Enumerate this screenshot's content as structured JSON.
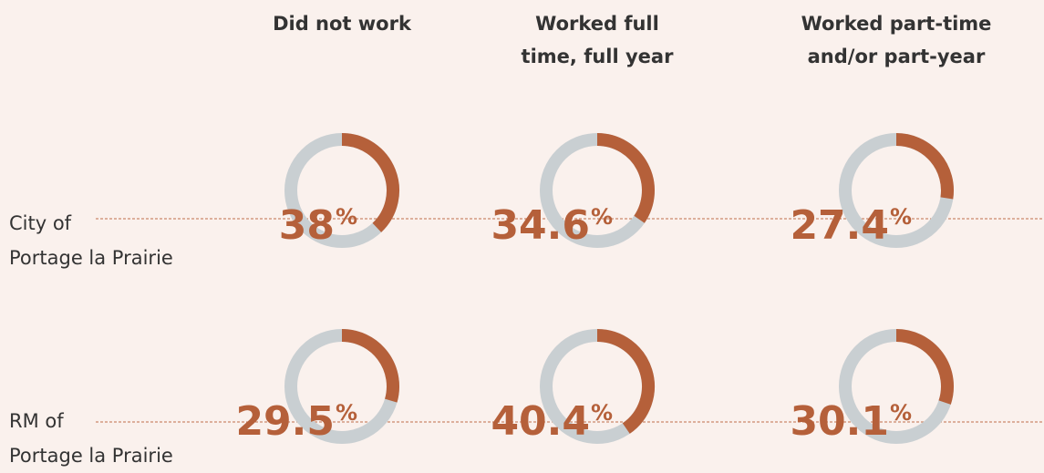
{
  "chart_data": {
    "type": "donut",
    "categories": [
      "Did not work",
      "Worked full\ntime, full year",
      "Worked part-time\nand/or part-year"
    ],
    "series": [
      {
        "name": "City of\nPortage la Prairie",
        "color": "#b5603a",
        "values": [
          38,
          34.6,
          27.4
        ]
      },
      {
        "name": "RM of\nPortage la Prairie",
        "color": "#b5603a",
        "values": [
          29.5,
          40.4,
          30.1
        ]
      }
    ],
    "unit": "%",
    "track_color": "#c9cfd2"
  }
}
